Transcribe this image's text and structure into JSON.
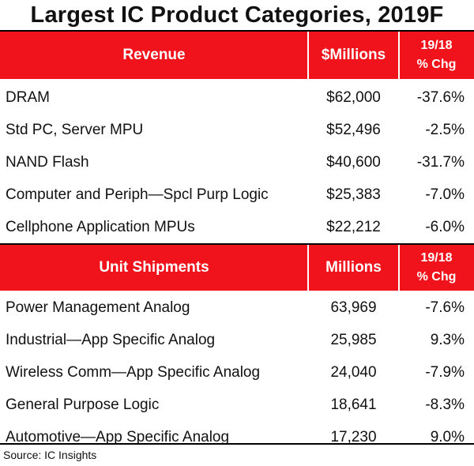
{
  "chart_data": {
    "type": "table",
    "title": "Largest IC Product Categories, 2019F",
    "sections": [
      {
        "header": {
          "category": "Revenue",
          "value": "$Millions",
          "change_line1": "19/18",
          "change_line2": "% Chg"
        },
        "rows": [
          {
            "category": "DRAM",
            "value": "$62,000",
            "change": "-37.6%"
          },
          {
            "category": "Std PC, Server MPU",
            "value": "$52,496",
            "change": "-2.5%"
          },
          {
            "category": "NAND Flash",
            "value": "$40,600",
            "change": "-31.7%"
          },
          {
            "category": "Computer and Periph—Spcl Purp Logic",
            "value": "$25,383",
            "change": "-7.0%"
          },
          {
            "category": "Cellphone Application MPUs",
            "value": "$22,212",
            "change": "-6.0%"
          }
        ]
      },
      {
        "header": {
          "category": "Unit Shipments",
          "value": "Millions",
          "change_line1": "19/18",
          "change_line2": "% Chg"
        },
        "rows": [
          {
            "category": "Power Management Analog",
            "value": "63,969",
            "change": "-7.6%"
          },
          {
            "category": "Industrial—App Specific Analog",
            "value": "25,985",
            "change": "9.3%"
          },
          {
            "category": "Wireless Comm—App Specific Analog",
            "value": "24,040",
            "change": "-7.9%"
          },
          {
            "category": "General Purpose Logic",
            "value": "18,641",
            "change": "-8.3%"
          },
          {
            "category": "Automotive—App Specific Analog",
            "value": "17,230",
            "change": "9.0%"
          }
        ]
      }
    ],
    "source": "Source:  IC Insights"
  },
  "colors": {
    "header_bg": "#f0131b",
    "header_text": "#ffffff",
    "text": "#111111"
  }
}
